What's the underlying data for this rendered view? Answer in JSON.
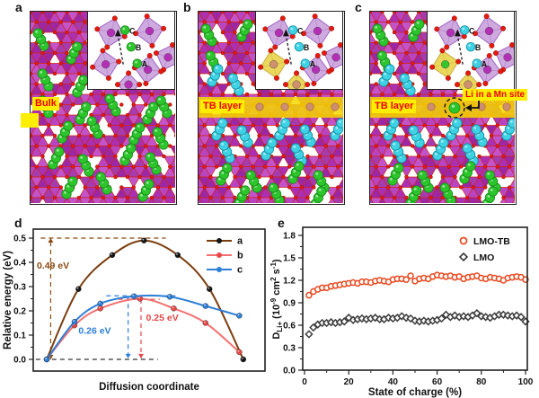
{
  "figure": {
    "panels": [
      {
        "corner_label": "a",
        "tag": "Bulk",
        "inset_atom_labels": [
          "C",
          "B",
          "A"
        ],
        "li_species": "green"
      },
      {
        "corner_label": "b",
        "tag": "TB layer",
        "inset_atom_labels": [
          "C",
          "B",
          "A"
        ],
        "li_species": "cyan-and-green"
      },
      {
        "corner_label": "c",
        "tag": "TB layer",
        "callout": "Li in a Mn site",
        "inset_atom_labels": [
          "C",
          "B",
          "A"
        ],
        "li_species": "cyan-and-green"
      }
    ],
    "colors": {
      "lattice_shades": [
        "#ab2fb3",
        "#b944c3",
        "#9c27a6",
        "#c253cb",
        "#a63bb0"
      ],
      "bond": "#d22512",
      "oxygen": "#e6190e",
      "oxygen_edge": "#8c0f06",
      "li_green": "#2cc52c",
      "li_green_edge": "#168a16",
      "li_cyan": "#3ed2e4",
      "li_cyan_edge": "#0f8fa0",
      "band": "#f6d800",
      "tb_atom": "#cf8e70",
      "tb_atom_edge": "#9c6046",
      "mn": "#b32ab3",
      "inset_face": "#caa3dd",
      "inset_edge": "#9b59c0",
      "inset_yellow": "#e9d44f",
      "inset_yellow_edge": "#c0a42c",
      "tag_bg": "#ffee00",
      "tag_text": "#ee0000"
    }
  },
  "chart_data": [
    {
      "panel_label": "d",
      "type": "line",
      "title": "",
      "xlabel": "Diffusion coordinate",
      "ylabel": "Relative energy (eV)",
      "ylim": [
        0,
        0.5
      ],
      "yticks": [
        "0.0",
        "0.1",
        "0.2",
        "0.3",
        "0.4",
        "0.5"
      ],
      "grid": false,
      "legend_position": "top-right",
      "series": [
        {
          "name": "a",
          "line_color": "#7a3d0f",
          "marker_color": "#161616",
          "x": [
            0,
            0.16,
            0.33,
            0.49,
            0.66,
            0.82,
            0.99
          ],
          "values": [
            0,
            0.29,
            0.43,
            0.49,
            0.43,
            0.29,
            0
          ]
        },
        {
          "name": "b",
          "line_color": "#f37171",
          "marker_color": "#e84848",
          "x": [
            0,
            0.14,
            0.27,
            0.47,
            0.64,
            0.8,
            0.97
          ],
          "values": [
            0,
            0.14,
            0.21,
            0.25,
            0.21,
            0.15,
            0.03
          ]
        },
        {
          "name": "c",
          "line_color": "#2e7fd8",
          "marker_color": "#2e7fd8",
          "x": [
            0,
            0.14,
            0.27,
            0.44,
            0.62,
            0.8,
            0.97
          ],
          "values": [
            0,
            0.155,
            0.23,
            0.26,
            0.258,
            0.22,
            0.18
          ]
        }
      ],
      "annotations": [
        {
          "text": "0.49 eV",
          "color": "#8a4a12",
          "x": -0.05,
          "y": 0.375
        },
        {
          "text": "0.26 eV",
          "color": "#2e7fd8",
          "x": 0.16,
          "y": 0.105
        },
        {
          "text": "0.25 eV",
          "color": "#e84848",
          "x": 0.5,
          "y": 0.16
        }
      ],
      "guides": [
        {
          "type": "h",
          "y": 0.5,
          "x1": -0.03,
          "x2": 0.6,
          "color": "#8a4a12"
        },
        {
          "type": "h",
          "y": 0,
          "x1": -0.055,
          "x2": 0.56,
          "color": "#333333"
        },
        {
          "type": "h",
          "y": 0.262,
          "x1": 0.3,
          "x2": 0.66,
          "color": "#2e7fd8"
        },
        {
          "type": "h",
          "y": 0.248,
          "x1": 0.36,
          "x2": 0.57,
          "color": "#e84848"
        },
        {
          "type": "v",
          "x": 0.02,
          "y1": 0,
          "y2": 0.5,
          "color": "#8a4a12",
          "arrows": "both"
        },
        {
          "type": "v",
          "x": 0.41,
          "y1": 0.262,
          "y2": 0.004,
          "color": "#2e7fd8",
          "arrows": "end"
        },
        {
          "type": "v",
          "x": 0.475,
          "y1": 0.248,
          "y2": 0.004,
          "color": "#e84848",
          "arrows": "end"
        }
      ]
    },
    {
      "panel_label": "e",
      "type": "scatter",
      "title": "",
      "xlabel": "State of charge (%)",
      "ylabel_parts": [
        {
          "t": "D",
          "kind": "base"
        },
        {
          "t": "Li+",
          "kind": "sub"
        },
        {
          "t": " (10",
          "kind": "base"
        },
        {
          "t": "-9",
          "kind": "sup"
        },
        {
          "t": " cm",
          "kind": "base"
        },
        {
          "t": "2",
          "kind": "sup"
        },
        {
          "t": " s",
          "kind": "base"
        },
        {
          "t": "-1",
          "kind": "sup"
        },
        {
          "t": ")",
          "kind": "base"
        }
      ],
      "xlim": [
        0,
        100
      ],
      "ylim": [
        0,
        1.8
      ],
      "xticks": [
        "0",
        "20",
        "40",
        "60",
        "80",
        "100"
      ],
      "yticks": [
        "0.0",
        "0.3",
        "0.6",
        "0.9",
        "1.2",
        "1.5",
        "1.8"
      ],
      "grid": false,
      "legend_position": "top-right",
      "x_values": [
        2,
        4,
        6,
        8,
        10,
        12,
        14,
        16,
        18,
        20,
        22,
        24,
        26,
        28,
        30,
        32,
        34,
        36,
        38,
        40,
        42,
        44,
        46,
        48,
        50,
        52,
        54,
        56,
        58,
        60,
        62,
        64,
        66,
        68,
        70,
        72,
        74,
        76,
        78,
        80,
        82,
        84,
        86,
        88,
        90,
        92,
        94,
        96,
        98,
        100
      ],
      "series": [
        {
          "name": "LMO-TB",
          "marker": "circle",
          "color": "#e8491f",
          "values": [
            1.0,
            1.05,
            1.08,
            1.1,
            1.1,
            1.12,
            1.13,
            1.14,
            1.15,
            1.16,
            1.17,
            1.16,
            1.18,
            1.18,
            1.17,
            1.19,
            1.2,
            1.19,
            1.18,
            1.21,
            1.22,
            1.22,
            1.21,
            1.26,
            1.19,
            1.22,
            1.23,
            1.22,
            1.25,
            1.27,
            1.26,
            1.25,
            1.26,
            1.24,
            1.25,
            1.22,
            1.24,
            1.25,
            1.26,
            1.23,
            1.22,
            1.24,
            1.23,
            1.22,
            1.2,
            1.23,
            1.24,
            1.25,
            1.24,
            1.21
          ]
        },
        {
          "name": "LMO",
          "marker": "diamond",
          "color": "#3a3a3a",
          "values": [
            0.48,
            0.57,
            0.61,
            0.63,
            0.63,
            0.64,
            0.63,
            0.64,
            0.65,
            0.7,
            0.67,
            0.68,
            0.69,
            0.68,
            0.69,
            0.7,
            0.68,
            0.68,
            0.7,
            0.69,
            0.7,
            0.72,
            0.7,
            0.69,
            0.66,
            0.65,
            0.66,
            0.65,
            0.66,
            0.67,
            0.69,
            0.74,
            0.71,
            0.73,
            0.71,
            0.72,
            0.71,
            0.73,
            0.76,
            0.72,
            0.71,
            0.7,
            0.72,
            0.74,
            0.74,
            0.73,
            0.72,
            0.73,
            0.71,
            0.65
          ]
        }
      ]
    }
  ]
}
